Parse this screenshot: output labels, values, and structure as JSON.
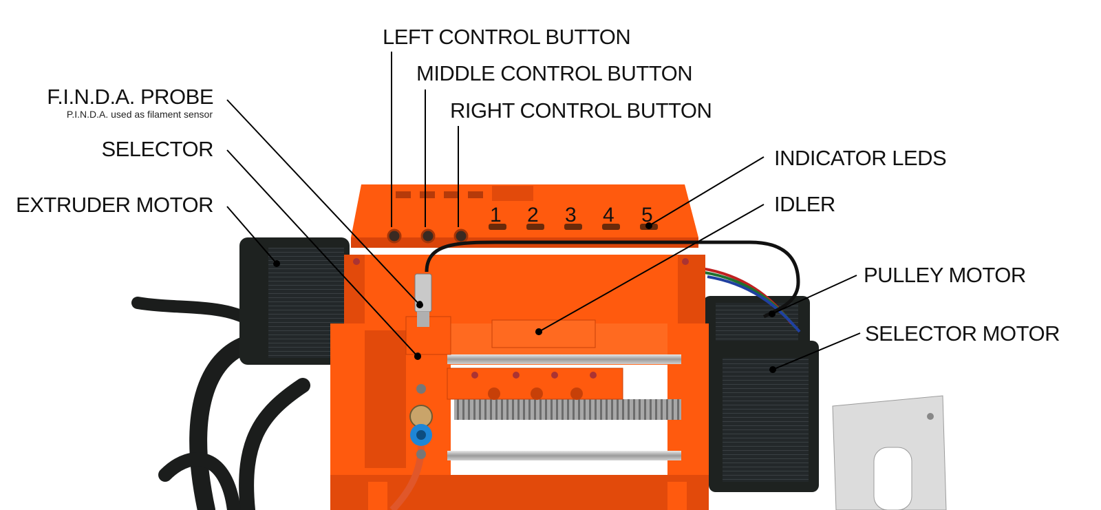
{
  "labels": {
    "finda_probe": "F.I.N.D.A. PROBE",
    "finda_probe_note": "P.I.N.D.A. used as filament sensor",
    "selector": "SELECTOR",
    "extruder_motor": "EXTRUDER MOTOR",
    "left_control_button": "LEFT CONTROL BUTTON",
    "middle_control_button": "MIDDLE CONTROL BUTTON",
    "right_control_button": "RIGHT CONTROL BUTTON",
    "indicator_leds": "INDICATOR LEDS",
    "idler": "IDLER",
    "pulley_motor": "PULLEY MOTOR",
    "selector_motor": "SELECTOR MOTOR"
  },
  "slot_numbers": [
    "1",
    "2",
    "3",
    "4",
    "5"
  ],
  "colors": {
    "printed_parts": "#ff5a0e",
    "printed_parts_shade": "#d9440a",
    "motor_body": "#1e2220",
    "rods": "#b8b8b8",
    "background": "#ffffff"
  },
  "icons": [
    "finda-probe-sensor",
    "stepper-motor",
    "filament-tube",
    "lead-screw"
  ]
}
